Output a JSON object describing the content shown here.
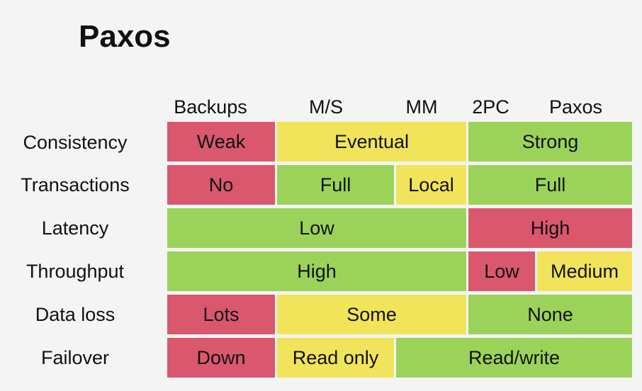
{
  "title": "Paxos",
  "columns": [
    "Backups",
    "M/S",
    "MM",
    "2PC",
    "Paxos"
  ],
  "rows": [
    "Consistency",
    "Transactions",
    "Latency",
    "Throughput",
    "Data loss",
    "Failover"
  ],
  "cells": {
    "consistency": [
      "Weak",
      "Eventual",
      "Strong"
    ],
    "transactions": [
      "No",
      "Full",
      "Local",
      "Full"
    ],
    "latency": [
      "Low",
      "High"
    ],
    "throughput": [
      "High",
      "Low",
      "Medium"
    ],
    "data_loss": [
      "Lots",
      "Some",
      "None"
    ],
    "failover": [
      "Down",
      "Read only",
      "Read/write"
    ]
  },
  "colors": {
    "red": "#d9586e",
    "yellow": "#f1e45a",
    "green": "#9bd35a"
  }
}
